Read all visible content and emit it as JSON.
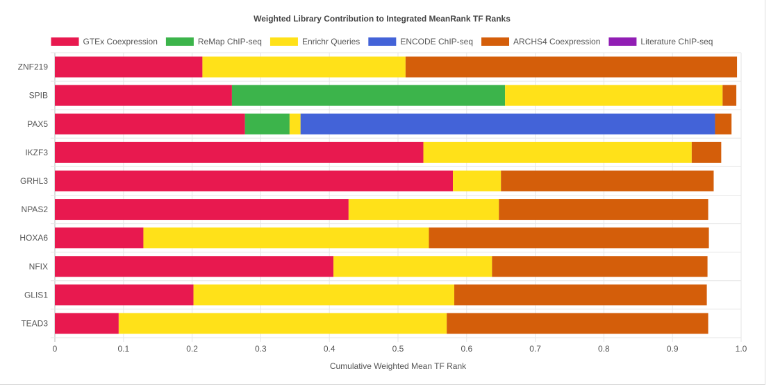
{
  "chart_data": {
    "type": "bar",
    "orientation": "horizontal",
    "stacked": true,
    "title": "Weighted Library Contribution to Integrated MeanRank TF Ranks",
    "xlabel": "Cumulative Weighted Mean TF Rank",
    "ylabel": "",
    "xlim": [
      0,
      1
    ],
    "xticks": [
      "0",
      "0.1",
      "0.2",
      "0.3",
      "0.4",
      "0.5",
      "0.6",
      "0.7",
      "0.8",
      "0.9",
      "1.0"
    ],
    "grid": true,
    "legend_position": "top",
    "categories": [
      "ZNF219",
      "SPIB",
      "PAX5",
      "IKZF3",
      "GRHL3",
      "NPAS2",
      "HOXA6",
      "NFIX",
      "GLIS1",
      "TEAD3"
    ],
    "series": [
      {
        "name": "GTEx Coexpression",
        "color": "#e8194f",
        "values": [
          0.215,
          0.258,
          0.277,
          0.537,
          0.58,
          0.428,
          0.129,
          0.406,
          0.202,
          0.093
        ]
      },
      {
        "name": "ReMap ChIP-seq",
        "color": "#3cb44b",
        "values": [
          0,
          0.398,
          0.065,
          0,
          0,
          0,
          0,
          0,
          0,
          0
        ]
      },
      {
        "name": "Enrichr Queries",
        "color": "#ffe119",
        "values": [
          0.296,
          0.317,
          0.016,
          0.391,
          0.07,
          0.219,
          0.416,
          0.231,
          0.38,
          0.478
        ]
      },
      {
        "name": "ENCODE ChIP-seq",
        "color": "#4363d8",
        "values": [
          0,
          0,
          0.604,
          0,
          0,
          0,
          0,
          0,
          0,
          0
        ]
      },
      {
        "name": "ARCHS4 Coexpression",
        "color": "#d45e0a",
        "values": [
          0.483,
          0.02,
          0.024,
          0.043,
          0.31,
          0.305,
          0.408,
          0.314,
          0.368,
          0.381
        ]
      },
      {
        "name": "Literature ChIP-seq",
        "color": "#911eb4",
        "values": [
          0,
          0,
          0,
          0,
          0,
          0,
          0,
          0,
          0,
          0
        ]
      }
    ]
  }
}
